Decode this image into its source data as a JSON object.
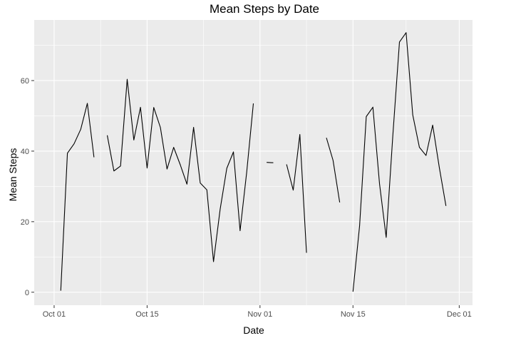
{
  "chart_data": {
    "type": "line",
    "title": "Mean Steps by Date",
    "xlabel": "Date",
    "ylabel": "Mean Steps",
    "x_scale": "date",
    "xlim": [
      "2012-09-28",
      "2012-12-03"
    ],
    "ylim": [
      -3.68,
      77.18
    ],
    "grid": true,
    "legend": "none",
    "colors": {
      "panel": "#EBEBEB",
      "grid": "#FFFFFF",
      "line": "#000000",
      "tick_text": "#4D4D4D"
    },
    "x_ticks": [
      {
        "value": "2012-10-01",
        "label": "Oct 01"
      },
      {
        "value": "2012-10-15",
        "label": "Oct 15"
      },
      {
        "value": "2012-11-01",
        "label": "Nov 01"
      },
      {
        "value": "2012-11-15",
        "label": "Nov 15"
      },
      {
        "value": "2012-12-01",
        "label": "Dec 01"
      }
    ],
    "y_ticks": [
      {
        "value": 0,
        "label": "0"
      },
      {
        "value": 20,
        "label": "20"
      },
      {
        "value": 40,
        "label": "40"
      },
      {
        "value": 60,
        "label": "60"
      }
    ],
    "series": [
      {
        "values": [
          {
            "x": "2012-10-02",
            "y": 0.4375
          },
          {
            "x": "2012-10-03",
            "y": 39.4167
          },
          {
            "x": "2012-10-04",
            "y": 42.0694
          },
          {
            "x": "2012-10-05",
            "y": 46.1597
          },
          {
            "x": "2012-10-06",
            "y": 53.5417
          },
          {
            "x": "2012-10-07",
            "y": 38.2465
          },
          {
            "x": "2012-10-08",
            "y": null
          },
          {
            "x": "2012-10-09",
            "y": 44.4826
          },
          {
            "x": "2012-10-10",
            "y": 34.375
          },
          {
            "x": "2012-10-11",
            "y": 35.7778
          },
          {
            "x": "2012-10-12",
            "y": 60.3542
          },
          {
            "x": "2012-10-13",
            "y": 43.1458
          },
          {
            "x": "2012-10-14",
            "y": 52.4236
          },
          {
            "x": "2012-10-15",
            "y": 35.2049
          },
          {
            "x": "2012-10-16",
            "y": 52.375
          },
          {
            "x": "2012-10-17",
            "y": 46.7083
          },
          {
            "x": "2012-10-18",
            "y": 34.9167
          },
          {
            "x": "2012-10-19",
            "y": 41.0729
          },
          {
            "x": "2012-10-20",
            "y": 36.0938
          },
          {
            "x": "2012-10-21",
            "y": 30.6285
          },
          {
            "x": "2012-10-22",
            "y": 46.7361
          },
          {
            "x": "2012-10-23",
            "y": 30.9653
          },
          {
            "x": "2012-10-24",
            "y": 29.0104
          },
          {
            "x": "2012-10-25",
            "y": 8.6528
          },
          {
            "x": "2012-10-26",
            "y": 23.5347
          },
          {
            "x": "2012-10-27",
            "y": 35.1354
          },
          {
            "x": "2012-10-28",
            "y": 39.7847
          },
          {
            "x": "2012-10-29",
            "y": 17.4236
          },
          {
            "x": "2012-10-30",
            "y": 34.0938
          },
          {
            "x": "2012-10-31",
            "y": 53.5208
          },
          {
            "x": "2012-11-01",
            "y": null
          },
          {
            "x": "2012-11-02",
            "y": 36.8056
          },
          {
            "x": "2012-11-03",
            "y": 36.7049
          },
          {
            "x": "2012-11-04",
            "y": null
          },
          {
            "x": "2012-11-05",
            "y": 36.2465
          },
          {
            "x": "2012-11-06",
            "y": 28.9375
          },
          {
            "x": "2012-11-07",
            "y": 44.7326
          },
          {
            "x": "2012-11-08",
            "y": 11.1771
          },
          {
            "x": "2012-11-09",
            "y": null
          },
          {
            "x": "2012-11-10",
            "y": null
          },
          {
            "x": "2012-11-11",
            "y": 43.7778
          },
          {
            "x": "2012-11-12",
            "y": 37.3785
          },
          {
            "x": "2012-11-13",
            "y": 25.4722
          },
          {
            "x": "2012-11-14",
            "y": null
          },
          {
            "x": "2012-11-15",
            "y": 0.1424
          },
          {
            "x": "2012-11-16",
            "y": 18.8924
          },
          {
            "x": "2012-11-17",
            "y": 49.7882
          },
          {
            "x": "2012-11-18",
            "y": 52.4653
          },
          {
            "x": "2012-11-19",
            "y": 30.6979
          },
          {
            "x": "2012-11-20",
            "y": 15.5278
          },
          {
            "x": "2012-11-21",
            "y": 44.3993
          },
          {
            "x": "2012-11-22",
            "y": 70.9271
          },
          {
            "x": "2012-11-23",
            "y": 73.5903
          },
          {
            "x": "2012-11-24",
            "y": 50.2708
          },
          {
            "x": "2012-11-25",
            "y": 41.0903
          },
          {
            "x": "2012-11-26",
            "y": 38.7569
          },
          {
            "x": "2012-11-27",
            "y": 47.3819
          },
          {
            "x": "2012-11-28",
            "y": 35.3576
          },
          {
            "x": "2012-11-29",
            "y": 24.4688
          }
        ]
      }
    ]
  }
}
